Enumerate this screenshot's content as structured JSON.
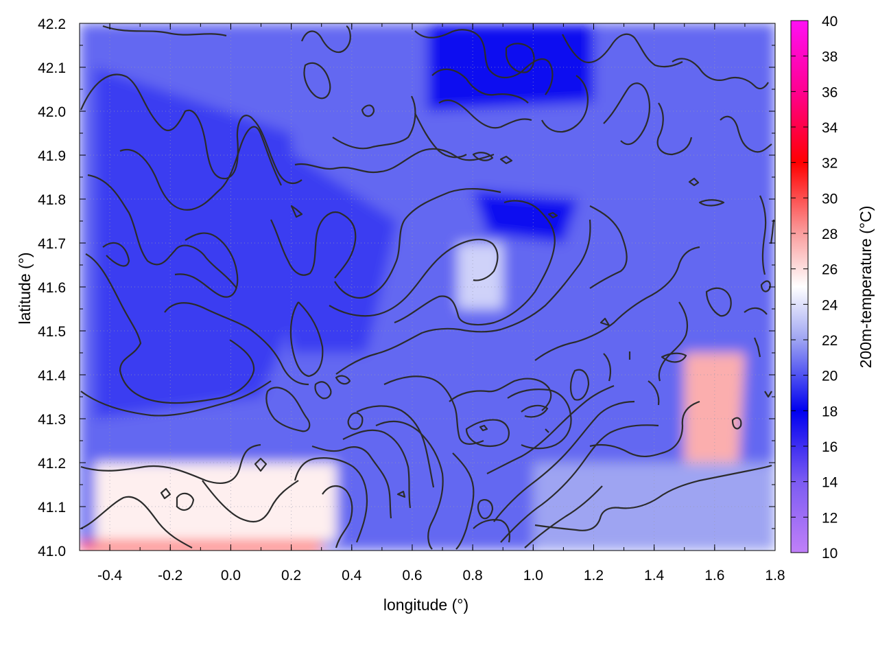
{
  "chart_data": {
    "type": "heatmap",
    "title": "",
    "xlabel": "longitude (°)",
    "ylabel": "latitude (°)",
    "colorbar_label": "200m-temperature (°C)",
    "xlim": [
      -0.5,
      1.8
    ],
    "ylim": [
      41.0,
      42.2
    ],
    "x_ticks": [
      "-0.4",
      "-0.2",
      "0.0",
      "0.2",
      "0.4",
      "0.6",
      "0.8",
      "1.0",
      "1.2",
      "1.4",
      "1.6",
      "1.8"
    ],
    "x_tick_values": [
      -0.4,
      -0.2,
      0.0,
      0.2,
      0.4,
      0.6,
      0.8,
      1.0,
      1.2,
      1.4,
      1.6,
      1.8
    ],
    "y_ticks": [
      "41.0",
      "41.1",
      "41.2",
      "41.3",
      "41.4",
      "41.5",
      "41.6",
      "41.7",
      "41.8",
      "41.9",
      "42.0",
      "42.1",
      "42.2"
    ],
    "y_tick_values": [
      41.0,
      41.1,
      41.2,
      41.3,
      41.4,
      41.5,
      41.6,
      41.7,
      41.8,
      41.9,
      42.0,
      42.1,
      42.2
    ],
    "colorbar_range": [
      10,
      40
    ],
    "colorbar_ticks": [
      "10",
      "12",
      "14",
      "16",
      "18",
      "20",
      "22",
      "24",
      "26",
      "28",
      "30",
      "32",
      "34",
      "36",
      "38",
      "40"
    ],
    "colorbar_tick_values": [
      10,
      12,
      14,
      16,
      18,
      20,
      22,
      24,
      26,
      28,
      30,
      32,
      34,
      36,
      38,
      40
    ],
    "colormap": [
      {
        "value": 10,
        "color": "#c080f8"
      },
      {
        "value": 14,
        "color": "#7c5cf2"
      },
      {
        "value": 18,
        "color": "#0000f0"
      },
      {
        "value": 22,
        "color": "#9ea4f2"
      },
      {
        "value": 25,
        "color": "#ffffff"
      },
      {
        "value": 28,
        "color": "#fa9e9e"
      },
      {
        "value": 32,
        "color": "#ff0000"
      },
      {
        "value": 36,
        "color": "#ff0090"
      },
      {
        "value": 40,
        "color": "#ff10f4"
      }
    ],
    "grid": true,
    "field_regions": [
      {
        "region": "general interior",
        "temperature_c": 20.5
      },
      {
        "region": "northwest upland, lon -0.45 to 0.2, lat 41.3 to 42.1",
        "temperature_c": 19.5
      },
      {
        "region": "northeast, lon 0.65 to 1.2, lat 42.0 to 42.2",
        "temperature_c": 17.5
      },
      {
        "region": "warm pocket, lon 0.8, lat 41.55 to 41.7",
        "temperature_c": 23.5
      },
      {
        "region": "coastal southwest, lon -0.45 to 0.35, lat 41.0 to 41.2",
        "temperature_c": 25.5
      },
      {
        "region": "south edge, lon -0.45 to 0.3, lat 41.0",
        "temperature_c": 31.5
      },
      {
        "region": "coast, lon 1.5 to 1.7, lat 41.2 to 41.45",
        "temperature_c": 27.5
      },
      {
        "region": "sea, lon 1.0 to 1.8, lat 41.0 to 41.2",
        "temperature_c": 22.0
      }
    ]
  }
}
